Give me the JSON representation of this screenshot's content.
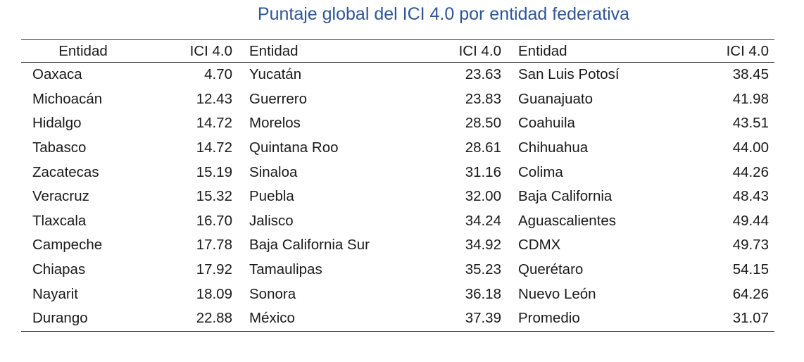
{
  "title": "Puntaje global del ICI 4.0 por entidad federativa",
  "headers": {
    "entity": "Entidad",
    "value": "ICI 4.0"
  },
  "rows": [
    [
      {
        "name": "Oaxaca",
        "value": "4.70"
      },
      {
        "name": "Yucatán",
        "value": "23.63"
      },
      {
        "name": "San Luis Potosí",
        "value": "38.45"
      }
    ],
    [
      {
        "name": "Michoacán",
        "value": "12.43"
      },
      {
        "name": "Guerrero",
        "value": "23.83"
      },
      {
        "name": "Guanajuato",
        "value": "41.98"
      }
    ],
    [
      {
        "name": "Hidalgo",
        "value": "14.72"
      },
      {
        "name": "Morelos",
        "value": "28.50"
      },
      {
        "name": "Coahuila",
        "value": "43.51"
      }
    ],
    [
      {
        "name": "Tabasco",
        "value": "14.72"
      },
      {
        "name": "Quintana Roo",
        "value": "28.61"
      },
      {
        "name": "Chihuahua",
        "value": "44.00"
      }
    ],
    [
      {
        "name": "Zacatecas",
        "value": "15.19"
      },
      {
        "name": "Sinaloa",
        "value": "31.16"
      },
      {
        "name": "Colima",
        "value": "44.26"
      }
    ],
    [
      {
        "name": "Veracruz",
        "value": "15.32"
      },
      {
        "name": "Puebla",
        "value": "32.00"
      },
      {
        "name": "Baja California",
        "value": "48.43"
      }
    ],
    [
      {
        "name": "Tlaxcala",
        "value": "16.70"
      },
      {
        "name": "Jalisco",
        "value": "34.24"
      },
      {
        "name": "Aguascalientes",
        "value": "49.44"
      }
    ],
    [
      {
        "name": "Campeche",
        "value": "17.78"
      },
      {
        "name": "Baja California Sur",
        "value": "34.92"
      },
      {
        "name": "CDMX",
        "value": "49.73"
      }
    ],
    [
      {
        "name": "Chiapas",
        "value": "17.92"
      },
      {
        "name": "Tamaulipas",
        "value": "35.23"
      },
      {
        "name": "Querétaro",
        "value": "54.15"
      }
    ],
    [
      {
        "name": "Nayarit",
        "value": "18.09"
      },
      {
        "name": "Sonora",
        "value": "36.18"
      },
      {
        "name": "Nuevo León",
        "value": "64.26"
      }
    ],
    [
      {
        "name": "Durango",
        "value": "22.88"
      },
      {
        "name": "México",
        "value": "37.39"
      },
      {
        "name": "Promedio",
        "value": "31.07"
      }
    ]
  ]
}
